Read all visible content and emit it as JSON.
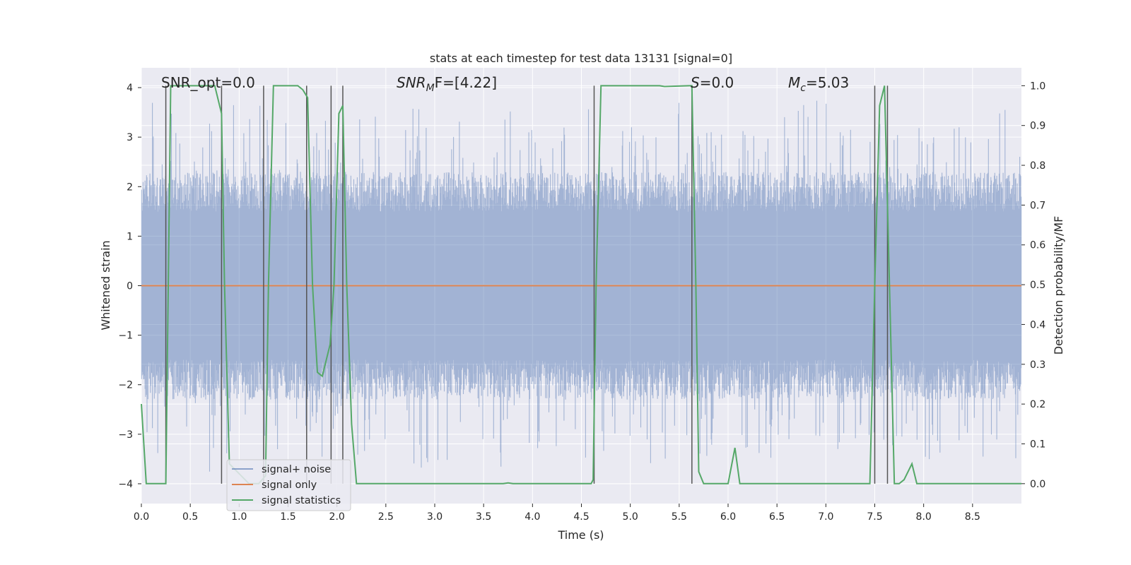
{
  "chart_data": {
    "type": "line",
    "title": "stats at each timestep for test data 13131 [signal=0]",
    "xlabel": "Time (s)",
    "ylabel_left": "Whitened strain",
    "ylabel_right": "Detection probability/MF",
    "xlim": [
      0.0,
      9.0
    ],
    "ylim_left": [
      -4.4,
      4.4
    ],
    "ylim_right": [
      -0.05,
      1.045
    ],
    "x_ticks": [
      "0.0",
      "0.5",
      "1.0",
      "1.5",
      "2.0",
      "2.5",
      "3.0",
      "3.5",
      "4.0",
      "4.5",
      "5.0",
      "5.5",
      "6.0",
      "6.5",
      "7.0",
      "7.5",
      "8.0",
      "8.5"
    ],
    "y_ticks_left": [
      "4",
      "3",
      "2",
      "1",
      "0",
      "−1",
      "−2",
      "−3",
      "−4"
    ],
    "y_ticks_right": [
      "1.0",
      "0.9",
      "0.8",
      "0.7",
      "0.6",
      "0.5",
      "0.4",
      "0.3",
      "0.2",
      "0.1",
      "0.0"
    ],
    "grid": true,
    "legend_position": "lower-left",
    "colors": {
      "background": "#eaeaf2",
      "noise": "#4c72b0",
      "signal_only": "#dd8452",
      "statistics": "#55a868",
      "vlines": "#555555",
      "grid": "#ffffff"
    },
    "annotations": [
      {
        "id": "snr-opt",
        "text": "SNR_opt=0.0",
        "italic": false
      },
      {
        "id": "snr-mf",
        "text_main": "SNR",
        "text_sub": "M",
        "text_rest": "F=[4.22]",
        "italic": true
      },
      {
        "id": "s-val",
        "text_main": "S",
        "text_rest": "=0.0",
        "italic": true
      },
      {
        "id": "mc-val",
        "text_main": "M",
        "text_sub": "c",
        "text_rest": "=5.03",
        "italic": true
      }
    ],
    "series": [
      {
        "name": "signal+ noise",
        "axis": "left",
        "description": "noise band",
        "envelope_upper": 2.3,
        "envelope_lower": -2.3,
        "peak_max": 4.0,
        "peak_min": -3.9
      },
      {
        "name": "signal only",
        "axis": "left",
        "value": 0.0
      },
      {
        "name": "signal statistics",
        "axis": "right",
        "x": [
          0.0,
          0.05,
          0.1,
          0.25,
          0.3,
          0.35,
          0.75,
          0.82,
          0.85,
          0.9,
          1.1,
          1.2,
          1.27,
          1.3,
          1.35,
          1.6,
          1.65,
          1.7,
          1.75,
          1.8,
          1.85,
          1.93,
          1.97,
          2.02,
          2.06,
          2.1,
          2.15,
          2.2,
          3.7,
          3.75,
          3.8,
          4.6,
          4.62,
          4.65,
          4.7,
          5.3,
          5.35,
          5.6,
          5.63,
          5.67,
          5.7,
          5.75,
          6.0,
          6.07,
          6.12,
          6.2,
          7.45,
          7.5,
          7.55,
          7.6,
          7.65,
          7.7,
          7.75,
          7.8,
          7.88,
          7.93,
          8.0,
          9.0
        ],
        "y": [
          0.2,
          0.0,
          0.0,
          0.0,
          1.0,
          1.0,
          1.0,
          0.93,
          0.5,
          0.05,
          0.0,
          0.0,
          0.02,
          0.5,
          1.0,
          1.0,
          0.99,
          0.97,
          0.5,
          0.28,
          0.27,
          0.35,
          0.5,
          0.93,
          0.95,
          0.5,
          0.15,
          0.0,
          0.0,
          0.002,
          0.0,
          0.0,
          0.01,
          0.5,
          1.0,
          1.0,
          0.998,
          1.0,
          1.0,
          0.5,
          0.03,
          0.0,
          0.0,
          0.09,
          0.0,
          0.0,
          0.0,
          0.5,
          0.95,
          1.0,
          0.5,
          0.0,
          0.0,
          0.01,
          0.05,
          0.0,
          0.0,
          0.0
        ]
      }
    ],
    "vertical_lines_x": [
      0.25,
      0.82,
      1.25,
      1.69,
      1.94,
      2.06,
      4.63,
      5.63,
      7.5,
      7.63
    ]
  },
  "legend": {
    "items": [
      "signal+ noise",
      "signal only",
      "signal statistics"
    ]
  }
}
